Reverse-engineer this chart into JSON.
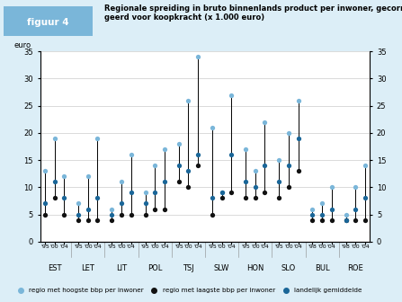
{
  "title_line1": "Regionale spreiding in bruto binnenlands product per inwoner, gecorri-",
  "title_line2": "geerd voor koopkracht (x 1.000 euro)",
  "figuur_label": "figuur 4",
  "ylabel_left": "euro",
  "ylabel_right": "euro",
  "ylim": [
    0,
    35
  ],
  "yticks": [
    0,
    5,
    10,
    15,
    20,
    25,
    30,
    35
  ],
  "countries": [
    "EST",
    "LET",
    "LIT",
    "POL",
    "TSJ",
    "SLW",
    "HON",
    "SLO",
    "BUL",
    "ROE"
  ],
  "years_per_country": {
    "EST": [
      "'95",
      "'00",
      "'04"
    ],
    "LET": [
      "'95",
      "'00",
      "'04"
    ],
    "LIT": [
      "'95",
      "'00",
      "'04"
    ],
    "POL": [
      "'95",
      "'00",
      "'04"
    ],
    "TSJ": [
      "'95",
      "'00",
      "'04"
    ],
    "SLW": [
      "'95",
      "'00",
      "'04"
    ],
    "HON": [
      "'95",
      "'00",
      "'04"
    ],
    "SLO": [
      "'95",
      "'00",
      "'04"
    ],
    "BUL": [
      "'98",
      "'00",
      "'04"
    ],
    "ROE": [
      "'98",
      "'00",
      "'04"
    ]
  },
  "high": {
    "EST": [
      13,
      19,
      12
    ],
    "LET": [
      7,
      12,
      19
    ],
    "LIT": [
      6,
      11,
      16
    ],
    "POL": [
      9,
      14,
      17
    ],
    "TSJ": [
      18,
      26,
      34
    ],
    "SLW": [
      21,
      9,
      27
    ],
    "HON": [
      17,
      13,
      22
    ],
    "SLO": [
      15,
      20,
      26
    ],
    "BUL": [
      6,
      7,
      10
    ],
    "ROE": [
      5,
      10,
      14
    ]
  },
  "low": {
    "EST": [
      5,
      8,
      5
    ],
    "LET": [
      4,
      4,
      4
    ],
    "LIT": [
      4,
      5,
      5
    ],
    "POL": [
      5,
      6,
      6
    ],
    "TSJ": [
      11,
      10,
      14
    ],
    "SLW": [
      5,
      8,
      9
    ],
    "HON": [
      8,
      8,
      9
    ],
    "SLO": [
      8,
      10,
      13
    ],
    "BUL": [
      4,
      4,
      4
    ],
    "ROE": [
      4,
      4,
      4
    ]
  },
  "mid": {
    "EST": [
      7,
      11,
      8
    ],
    "LET": [
      5,
      6,
      8
    ],
    "LIT": [
      5,
      7,
      9
    ],
    "POL": [
      7,
      9,
      11
    ],
    "TSJ": [
      14,
      13,
      16
    ],
    "SLW": [
      8,
      9,
      16
    ],
    "HON": [
      11,
      10,
      14
    ],
    "SLO": [
      11,
      14,
      19
    ],
    "BUL": [
      5,
      5,
      6
    ],
    "ROE": [
      4,
      6,
      8
    ]
  },
  "color_high": "#7ab6d9",
  "color_low": "#111111",
  "color_mid": "#1a6698",
  "color_bg_chart": "#ffffff",
  "color_bg_outer": "#dceef7",
  "color_figuur_bg": "#7ab6d9",
  "legend_high": "regio met hoogste bbp per inwoner",
  "legend_low": "regio met laagste bbp per inwoner",
  "legend_mid": "landelijk gemiddelde"
}
